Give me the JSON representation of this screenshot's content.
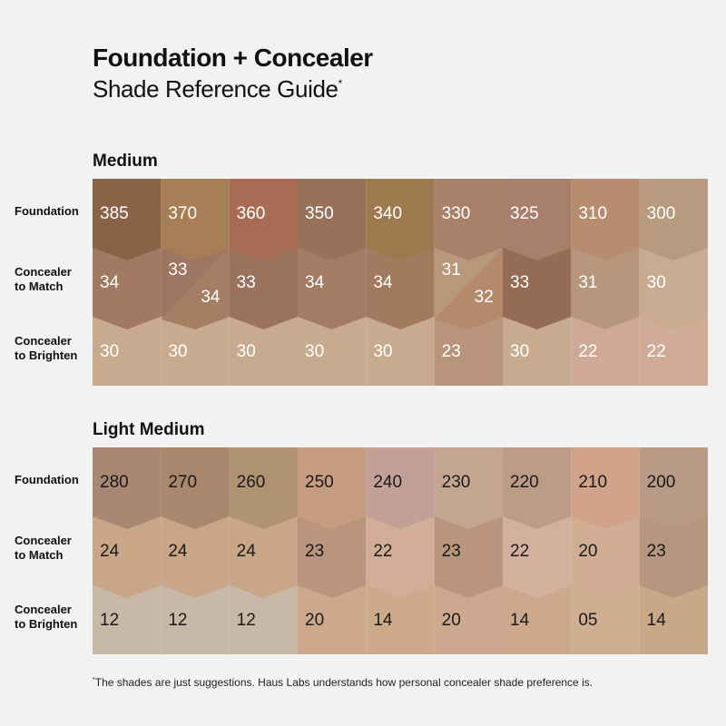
{
  "title": "Foundation + Concealer",
  "subtitle": "Shade Reference Guide",
  "subtitle_mark": "*",
  "footnote_mark": "*",
  "footnote": "The shades are just suggestions. Haus Labs understands how personal concealer shade preference is.",
  "sections": [
    {
      "title": "Medium",
      "text_color": "#ffffff",
      "rows": [
        {
          "label_1": "Foundation",
          "label_2": "",
          "cells": [
            {
              "values": [
                "385"
              ],
              "colors": [
                "#8a6248"
              ]
            },
            {
              "values": [
                "370"
              ],
              "colors": [
                "#a77f57"
              ]
            },
            {
              "values": [
                "360"
              ],
              "colors": [
                "#a86c54"
              ]
            },
            {
              "values": [
                "350"
              ],
              "colors": [
                "#98715a"
              ]
            },
            {
              "values": [
                "340"
              ],
              "colors": [
                "#9f7a4f"
              ]
            },
            {
              "values": [
                "330"
              ],
              "colors": [
                "#a88168"
              ]
            },
            {
              "values": [
                "325"
              ],
              "colors": [
                "#a87f6a"
              ]
            },
            {
              "values": [
                "310"
              ],
              "colors": [
                "#b78d70"
              ]
            },
            {
              "values": [
                "300"
              ],
              "colors": [
                "#b89a7e"
              ]
            }
          ]
        },
        {
          "label_1": "Concealer",
          "label_2": "to Match",
          "cells": [
            {
              "values": [
                "34"
              ],
              "colors": [
                "#a07a62"
              ]
            },
            {
              "values": [
                "33",
                "34"
              ],
              "colors": [
                "#9d7560",
                "#a57e64"
              ]
            },
            {
              "values": [
                "33"
              ],
              "colors": [
                "#9a735c"
              ]
            },
            {
              "values": [
                "34"
              ],
              "colors": [
                "#a27d63"
              ]
            },
            {
              "values": [
                "34"
              ],
              "colors": [
                "#a27a60"
              ]
            },
            {
              "values": [
                "31",
                "32"
              ],
              "colors": [
                "#b8977b",
                "#b38a6c"
              ]
            },
            {
              "values": [
                "33"
              ],
              "colors": [
                "#946b55"
              ]
            },
            {
              "values": [
                "31"
              ],
              "colors": [
                "#b8967c"
              ]
            },
            {
              "values": [
                "30"
              ],
              "colors": [
                "#c9ab91"
              ]
            }
          ]
        },
        {
          "label_1": "Concealer",
          "label_2": "to Brighten",
          "cells": [
            {
              "values": [
                "30"
              ],
              "colors": [
                "#c8ab8f"
              ]
            },
            {
              "values": [
                "30"
              ],
              "colors": [
                "#c8ab8f"
              ]
            },
            {
              "values": [
                "30"
              ],
              "colors": [
                "#c8ab8f"
              ]
            },
            {
              "values": [
                "30"
              ],
              "colors": [
                "#c8ab8f"
              ]
            },
            {
              "values": [
                "30"
              ],
              "colors": [
                "#c8ab8f"
              ]
            },
            {
              "values": [
                "23"
              ],
              "colors": [
                "#b8947a"
              ]
            },
            {
              "values": [
                "30"
              ],
              "colors": [
                "#c8ab8f"
              ]
            },
            {
              "values": [
                "22"
              ],
              "colors": [
                "#cfa995"
              ]
            },
            {
              "values": [
                "22"
              ],
              "colors": [
                "#d0ab98"
              ]
            }
          ]
        }
      ]
    },
    {
      "title": "Light Medium",
      "text_color": "#1a1a1a",
      "rows": [
        {
          "label_1": "Foundation",
          "label_2": "",
          "cells": [
            {
              "values": [
                "280"
              ],
              "colors": [
                "#a88774"
              ]
            },
            {
              "values": [
                "270"
              ],
              "colors": [
                "#a8876d"
              ]
            },
            {
              "values": [
                "260"
              ],
              "colors": [
                "#b09370"
              ]
            },
            {
              "values": [
                "250"
              ],
              "colors": [
                "#c69d80"
              ]
            },
            {
              "values": [
                "240"
              ],
              "colors": [
                "#c2a098"
              ]
            },
            {
              "values": [
                "230"
              ],
              "colors": [
                "#c4a590"
              ]
            },
            {
              "values": [
                "220"
              ],
              "colors": [
                "#bc9c86"
              ]
            },
            {
              "values": [
                "210"
              ],
              "colors": [
                "#d0a38a"
              ]
            },
            {
              "values": [
                "200"
              ],
              "colors": [
                "#b89a86"
              ]
            }
          ]
        },
        {
          "label_1": "Concealer",
          "label_2": "to Match",
          "cells": [
            {
              "values": [
                "24"
              ],
              "colors": [
                "#c9a688"
              ]
            },
            {
              "values": [
                "24"
              ],
              "colors": [
                "#c9a688"
              ]
            },
            {
              "values": [
                "24"
              ],
              "colors": [
                "#c9a688"
              ]
            },
            {
              "values": [
                "23"
              ],
              "colors": [
                "#b8957c"
              ]
            },
            {
              "values": [
                "22"
              ],
              "colors": [
                "#d2ae98"
              ]
            },
            {
              "values": [
                "23"
              ],
              "colors": [
                "#b8957c"
              ]
            },
            {
              "values": [
                "22"
              ],
              "colors": [
                "#d3b09e"
              ]
            },
            {
              "values": [
                "20"
              ],
              "colors": [
                "#d0ad93"
              ]
            },
            {
              "values": [
                "23"
              ],
              "colors": [
                "#b8957e"
              ]
            }
          ]
        },
        {
          "label_1": "Concealer",
          "label_2": "to Brighten",
          "cells": [
            {
              "values": [
                "12"
              ],
              "colors": [
                "#c8b8a8"
              ]
            },
            {
              "values": [
                "12"
              ],
              "colors": [
                "#c8b8a8"
              ]
            },
            {
              "values": [
                "12"
              ],
              "colors": [
                "#c8b8a8"
              ]
            },
            {
              "values": [
                "20"
              ],
              "colors": [
                "#cca88c"
              ]
            },
            {
              "values": [
                "14"
              ],
              "colors": [
                "#cba98a"
              ]
            },
            {
              "values": [
                "20"
              ],
              "colors": [
                "#cca88e"
              ]
            },
            {
              "values": [
                "14"
              ],
              "colors": [
                "#cca98c"
              ]
            },
            {
              "values": [
                "05"
              ],
              "colors": [
                "#d0ae92"
              ]
            },
            {
              "values": [
                "14"
              ],
              "colors": [
                "#c9a888"
              ]
            }
          ]
        }
      ]
    }
  ]
}
